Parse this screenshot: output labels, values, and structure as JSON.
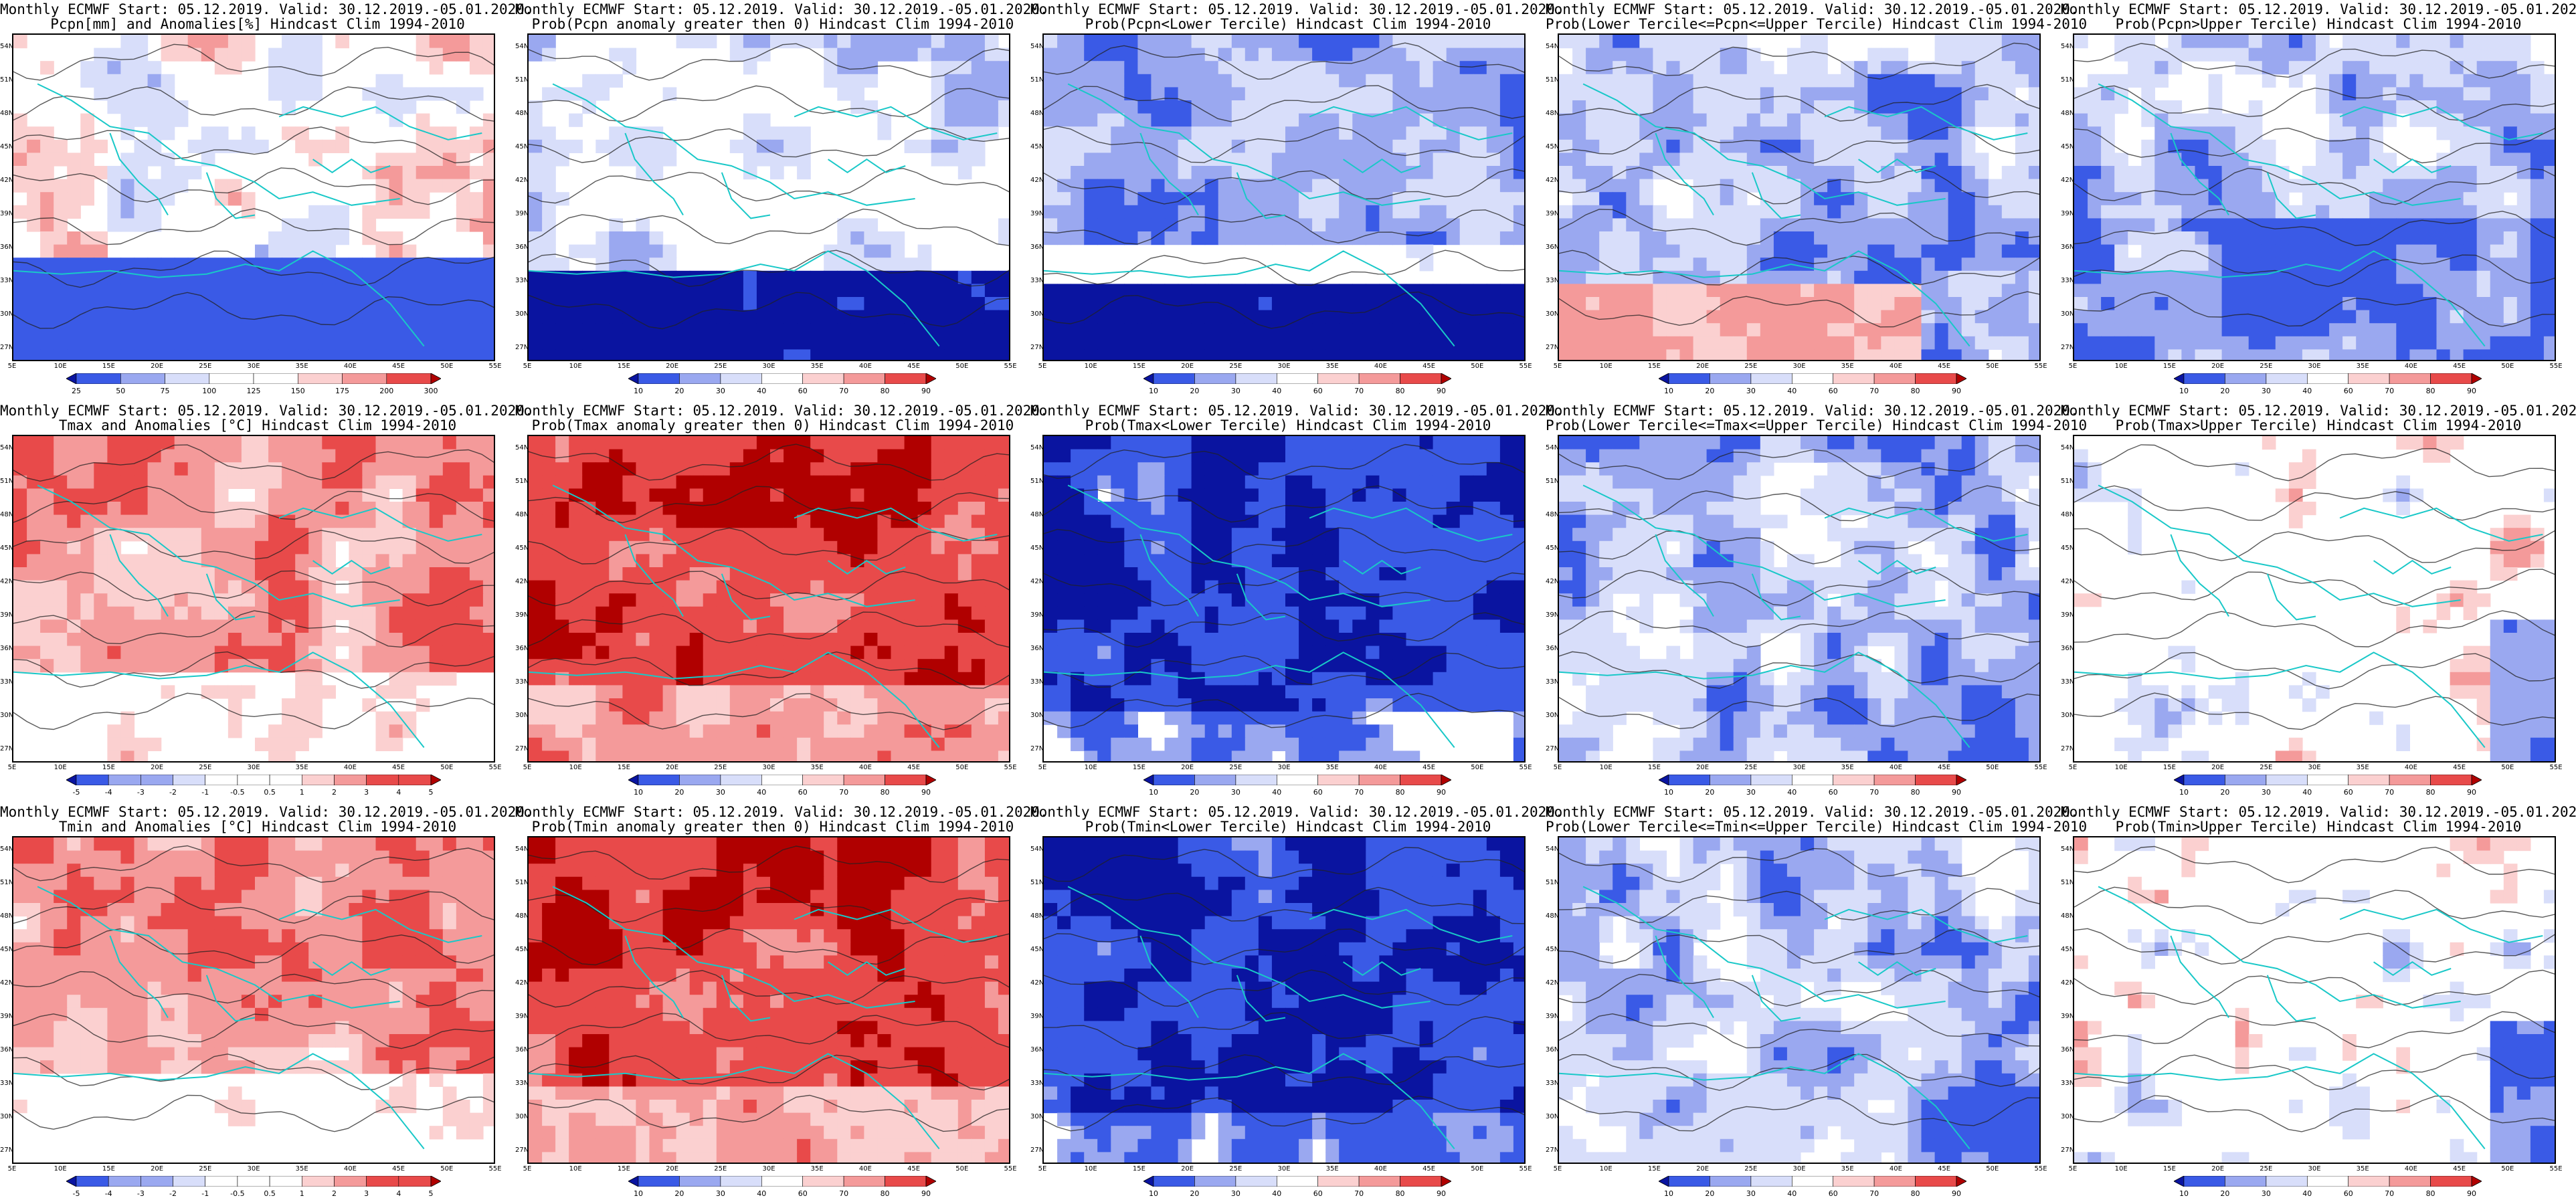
{
  "header_line": "Monthly ECMWF Start: 05.12.2019. Valid: 30.12.2019.-05.01.2020.",
  "lat_labels": [
    "54N",
    "51N",
    "48N",
    "45N",
    "42N",
    "39N",
    "36N",
    "33N",
    "30N",
    "27N"
  ],
  "lon_labels": [
    "5E",
    "10E",
    "15E",
    "20E",
    "25E",
    "30E",
    "35E",
    "40E",
    "45E",
    "50E",
    "55E"
  ],
  "colors": {
    "coast": "#19c8c8",
    "contour": "#222222",
    "dark_blue": "#0a14a0",
    "blue": "#3a5ae6",
    "light_blue": "#9aa8f0",
    "pale_blue": "#d8defa",
    "white": "#ffffff",
    "pale_red": "#fbd0d0",
    "light_red": "#f49a9a",
    "red": "#e84a4a",
    "dark_red": "#b00000"
  },
  "colorbars": {
    "anom_pcpn": [
      "25",
      "50",
      "75",
      "100",
      "125",
      "150",
      "175",
      "200",
      "300"
    ],
    "prob": [
      "10",
      "20",
      "30",
      "40",
      "60",
      "70",
      "80",
      "90"
    ],
    "anom_temp": [
      "-5",
      "-4",
      "-3",
      "-2",
      "-1",
      "-0.5",
      "0.5",
      "1",
      "2",
      "3",
      "4",
      "5"
    ]
  },
  "panels": [
    {
      "id": "r1c1",
      "title2": "Pcpn[mm] and Anomalies[%] Hindcast Clim 1994-2010",
      "cbar": "anom_pcpn",
      "scheme": "pcpn_anom"
    },
    {
      "id": "r1c2",
      "title2": "Prob(Pcpn anomaly greater then 0) Hindcast Clim 1994-2010",
      "cbar": "prob",
      "scheme": "pcpn_prob_pos"
    },
    {
      "id": "r1c3",
      "title2": "Prob(Pcpn<Lower Tercile) Hindcast Clim 1994-2010",
      "cbar": "prob",
      "scheme": "pcpn_low"
    },
    {
      "id": "r1c4",
      "title2": "Prob(Lower Tercile<=Pcpn<=Upper Tercile) Hindcast Clim 1994-2010",
      "cbar": "prob",
      "scheme": "pcpn_mid"
    },
    {
      "id": "r1c5",
      "title2": "Prob(Pcpn>Upper Tercile) Hindcast Clim 1994-2010",
      "cbar": "prob",
      "scheme": "pcpn_up"
    },
    {
      "id": "r2c1",
      "title2": "Tmax and Anomalies [°C] Hindcast Clim 1994-2010",
      "cbar": "anom_temp",
      "scheme": "warm"
    },
    {
      "id": "r2c2",
      "title2": "Prob(Tmax anomaly greater then 0) Hindcast Clim 1994-2010",
      "cbar": "prob",
      "scheme": "warm_strong"
    },
    {
      "id": "r2c3",
      "title2": "Prob(Tmax<Lower Tercile) Hindcast Clim 1994-2010",
      "cbar": "prob",
      "scheme": "cold_strong"
    },
    {
      "id": "r2c4",
      "title2": "Prob(Lower Tercile<=Tmax<=Upper Tercile) Hindcast Clim 1994-2010",
      "cbar": "prob",
      "scheme": "mixed_blue"
    },
    {
      "id": "r2c5",
      "title2": "Prob(Tmax>Upper Tercile) Hindcast Clim 1994-2010",
      "cbar": "prob",
      "scheme": "mostly_white"
    },
    {
      "id": "r3c1",
      "title2": "Tmin and Anomalies [°C] Hindcast Clim 1994-2010",
      "cbar": "anom_temp",
      "scheme": "warm"
    },
    {
      "id": "r3c2",
      "title2": "Prob(Tmin anomaly greater then 0) Hindcast Clim 1994-2010",
      "cbar": "prob",
      "scheme": "warm_strong"
    },
    {
      "id": "r3c3",
      "title2": "Prob(Tmin<Lower Tercile) Hindcast Clim 1994-2010",
      "cbar": "prob",
      "scheme": "cold_strong"
    },
    {
      "id": "r3c4",
      "title2": "Prob(Lower Tercile<=Tmin<=Upper Tercile) Hindcast Clim 1994-2010",
      "cbar": "prob",
      "scheme": "mixed_blue"
    },
    {
      "id": "r3c5",
      "title2": "Prob(Tmin>Upper Tercile) Hindcast Clim 1994-2010",
      "cbar": "prob",
      "scheme": "mostly_white"
    }
  ]
}
